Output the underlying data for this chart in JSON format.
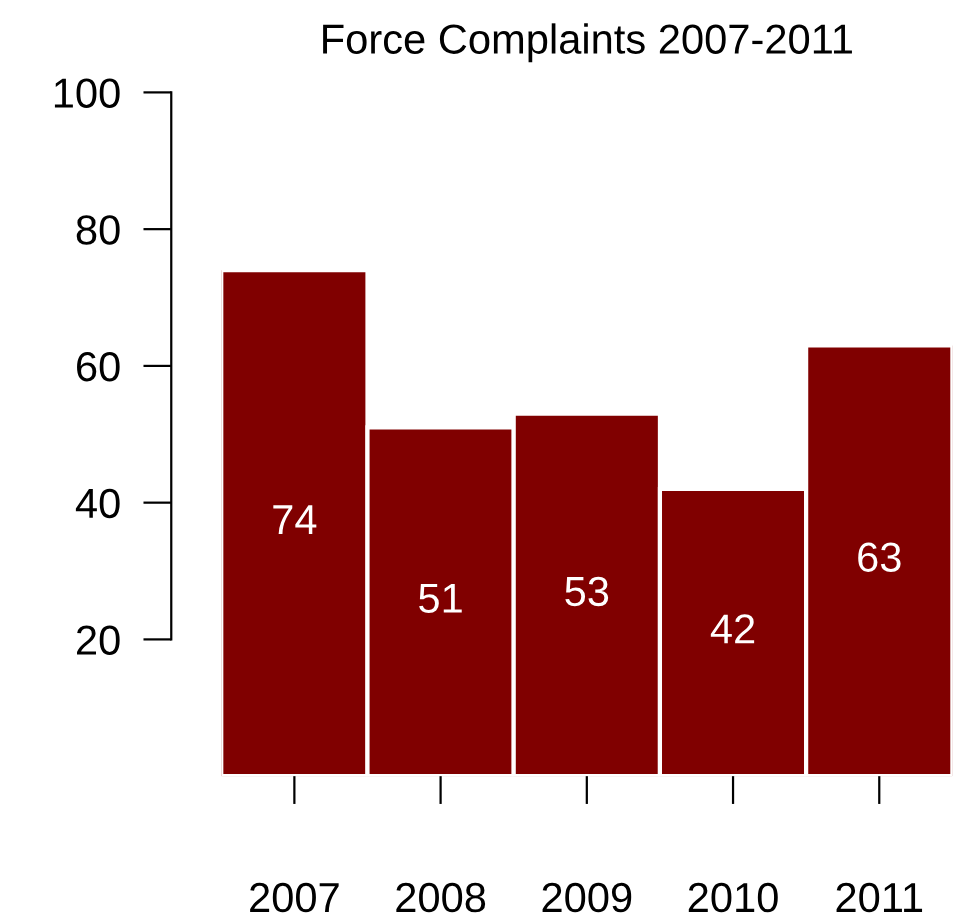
{
  "chart_data": {
    "type": "bar",
    "title": "Force Complaints 2007-2011",
    "categories": [
      "2007",
      "2008",
      "2009",
      "2010",
      "2011"
    ],
    "values": [
      74,
      51,
      53,
      42,
      63
    ],
    "color": "#800000",
    "ylim": [
      0,
      100
    ],
    "yticks": [
      20,
      40,
      60,
      80,
      100
    ],
    "data_labels": true,
    "grid": false
  }
}
